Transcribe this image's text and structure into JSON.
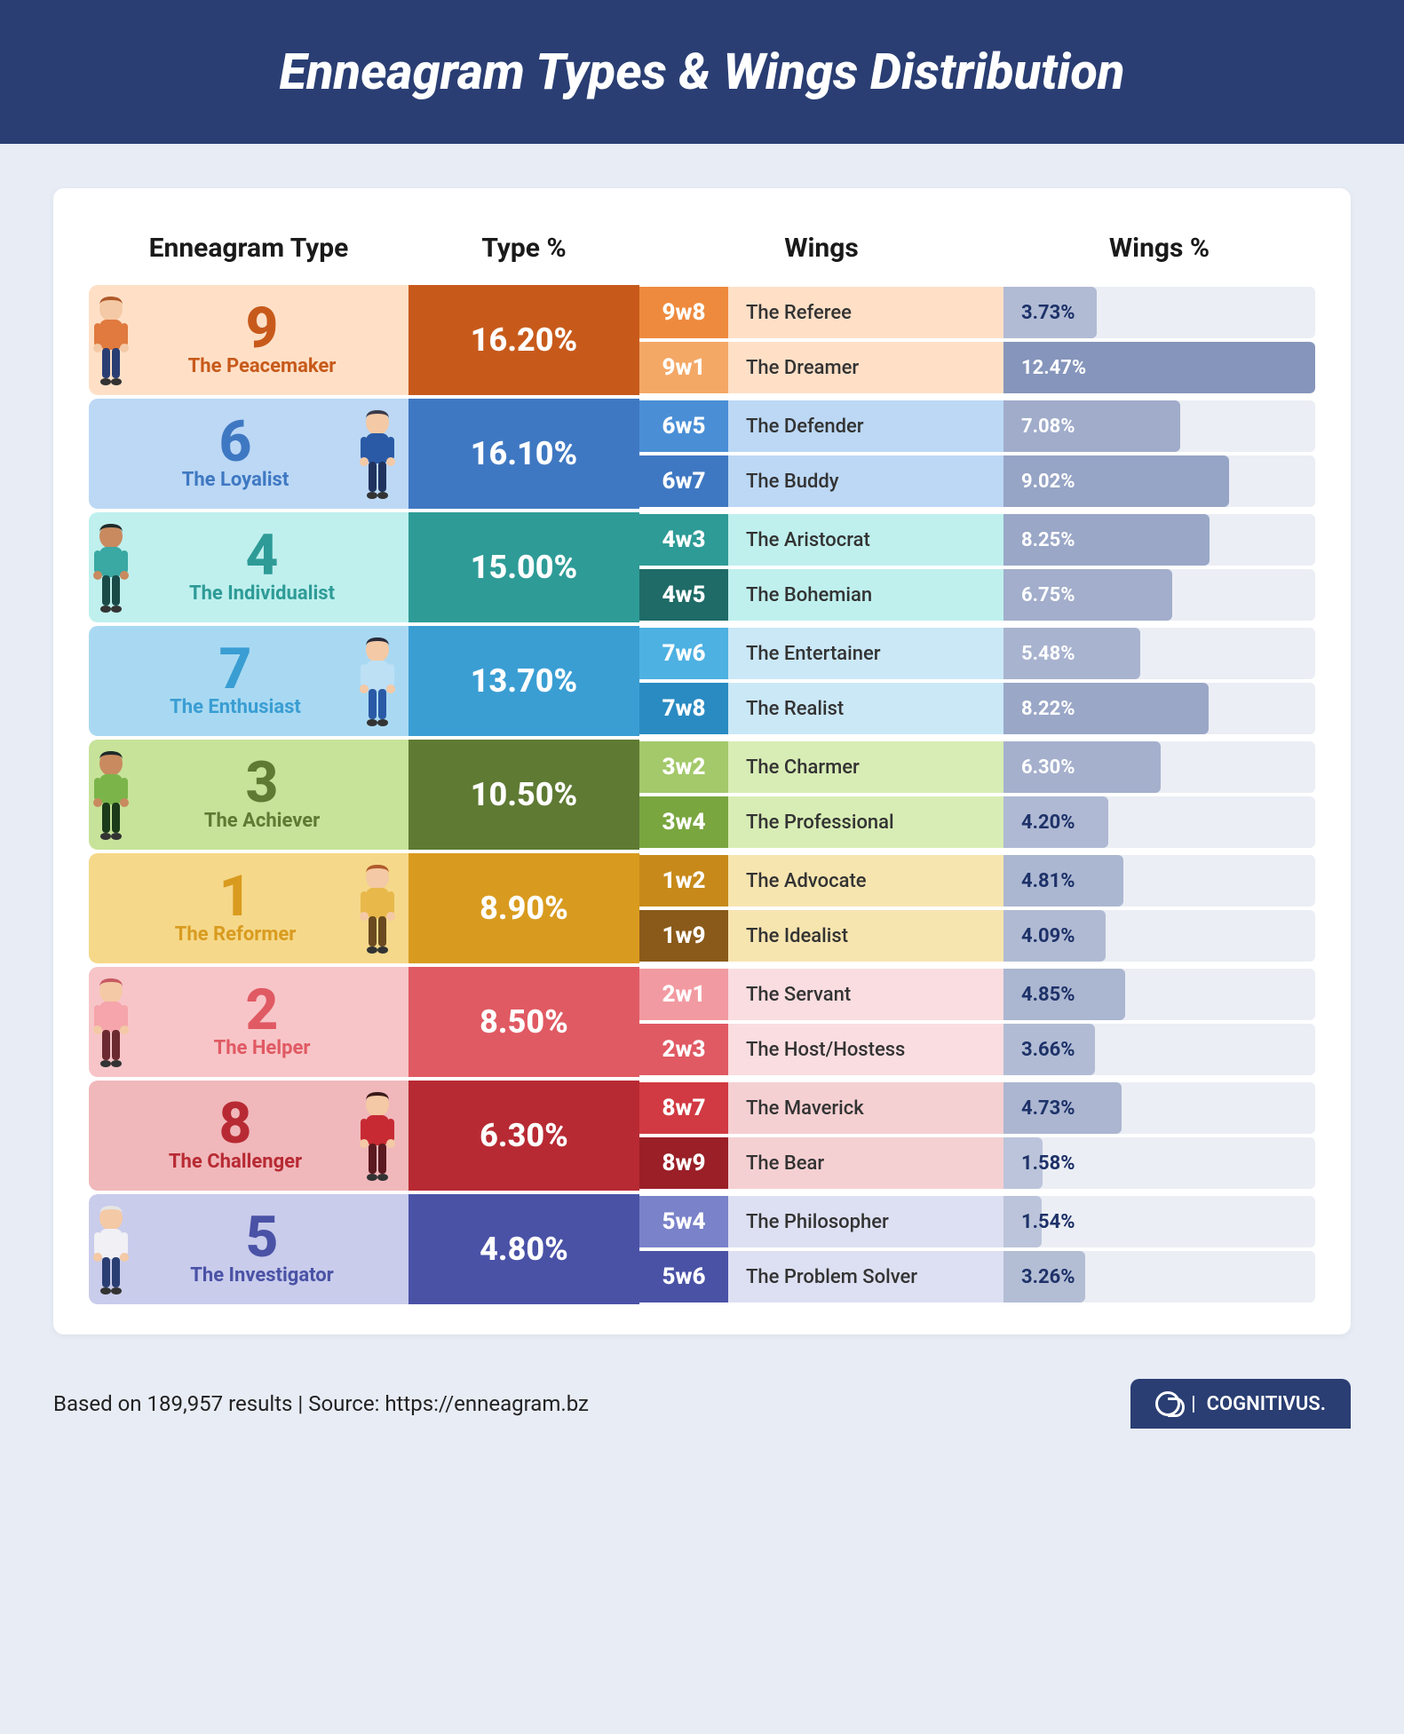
{
  "title": "Enneagram Types & Wings Distribution",
  "headers": {
    "type": "Enneagram Type",
    "type_pct": "Type %",
    "wings": "Wings",
    "wings_pct": "Wings %"
  },
  "max_wing_pct": 12.47,
  "bar_base_color": "#7a8bb5",
  "text_dark": "#1e3269",
  "text_light": "#ffffff",
  "types": [
    {
      "num": "9",
      "name": "The Peacemaker",
      "pct": "16.20%",
      "row_bg": "#ffe0c7",
      "pct_bg": "#c75a1b",
      "num_color": "#c75a1b",
      "avatar_colors": {
        "skin": "#f4c9a5",
        "hair": "#b05a2a",
        "shirt": "#e07a3f",
        "pants": "#2a3e73"
      },
      "wings": [
        {
          "code": "9w8",
          "code_bg": "#ee8a3e",
          "name": "The Referee",
          "name_bg": "#ffe0c7",
          "pct": "3.73%",
          "pct_val": 3.73,
          "lbl_color": "dark"
        },
        {
          "code": "9w1",
          "code_bg": "#f4a866",
          "name": "The Dreamer",
          "name_bg": "#ffe0c7",
          "pct": "12.47%",
          "pct_val": 12.47,
          "lbl_color": "light"
        }
      ]
    },
    {
      "num": "6",
      "name": "The Loyalist",
      "pct": "16.10%",
      "row_bg": "#bcd8f5",
      "pct_bg": "#3f78c2",
      "num_color": "#3f78c2",
      "avatar_colors": {
        "skin": "#f4c9a5",
        "hair": "#3a3a4a",
        "shirt": "#2a5aa6",
        "pants": "#20335e"
      },
      "wings": [
        {
          "code": "6w5",
          "code_bg": "#4a8fd6",
          "name": "The Defender",
          "name_bg": "#bcd8f5",
          "pct": "7.08%",
          "pct_val": 7.08,
          "lbl_color": "light"
        },
        {
          "code": "6w7",
          "code_bg": "#3f78c2",
          "name": "The Buddy",
          "name_bg": "#bcd8f5",
          "pct": "9.02%",
          "pct_val": 9.02,
          "lbl_color": "light"
        }
      ]
    },
    {
      "num": "4",
      "name": "The Individualist",
      "pct": "15.00%",
      "row_bg": "#bff0ee",
      "pct_bg": "#2e9b97",
      "num_color": "#2e9b97",
      "avatar_colors": {
        "skin": "#c98a5f",
        "hair": "#1f2a2a",
        "shirt": "#3aa8a3",
        "pants": "#1a4a48"
      },
      "wings": [
        {
          "code": "4w3",
          "code_bg": "#2e9b97",
          "name": "The Aristocrat",
          "name_bg": "#bff0ee",
          "pct": "8.25%",
          "pct_val": 8.25,
          "lbl_color": "light"
        },
        {
          "code": "4w5",
          "code_bg": "#1f6b67",
          "name": "The Bohemian",
          "name_bg": "#bff0ee",
          "pct": "6.75%",
          "pct_val": 6.75,
          "lbl_color": "light"
        }
      ]
    },
    {
      "num": "7",
      "name": "The Enthusiast",
      "pct": "13.70%",
      "row_bg": "#a9d9f2",
      "pct_bg": "#3a9ed3",
      "num_color": "#3a9ed3",
      "avatar_colors": {
        "skin": "#f4c9a5",
        "hair": "#2a2a3a",
        "shirt": "#bde0f5",
        "pants": "#2a5aa6"
      },
      "wings": [
        {
          "code": "7w6",
          "code_bg": "#4db1e2",
          "name": "The Entertainer",
          "name_bg": "#cbe8f7",
          "pct": "5.48%",
          "pct_val": 5.48,
          "lbl_color": "light"
        },
        {
          "code": "7w8",
          "code_bg": "#2a8bc2",
          "name": "The Realist",
          "name_bg": "#cbe8f7",
          "pct": "8.22%",
          "pct_val": 8.22,
          "lbl_color": "light"
        }
      ]
    },
    {
      "num": "3",
      "name": "The Achiever",
      "pct": "10.50%",
      "row_bg": "#c7e39a",
      "pct_bg": "#5e7a33",
      "num_color": "#5e7a33",
      "avatar_colors": {
        "skin": "#c98a5f",
        "hair": "#1f2a2a",
        "shirt": "#7bb54a",
        "pants": "#1a3a1a"
      },
      "wings": [
        {
          "code": "3w2",
          "code_bg": "#a3c96a",
          "name": "The Charmer",
          "name_bg": "#d8edb5",
          "pct": "6.30%",
          "pct_val": 6.3,
          "lbl_color": "light"
        },
        {
          "code": "3w4",
          "code_bg": "#7aa63f",
          "name": "The Professional",
          "name_bg": "#d8edb5",
          "pct": "4.20%",
          "pct_val": 4.2,
          "lbl_color": "dark"
        }
      ]
    },
    {
      "num": "1",
      "name": "The Reformer",
      "pct": "8.90%",
      "row_bg": "#f5d88a",
      "pct_bg": "#d99b1f",
      "num_color": "#d99b1f",
      "avatar_colors": {
        "skin": "#f4c9a5",
        "hair": "#b05a2a",
        "shirt": "#e8b84a",
        "pants": "#6a4a20"
      },
      "wings": [
        {
          "code": "1w2",
          "code_bg": "#c78a1a",
          "name": "The Advocate",
          "name_bg": "#f7e5b0",
          "pct": "4.81%",
          "pct_val": 4.81,
          "lbl_color": "dark"
        },
        {
          "code": "1w9",
          "code_bg": "#8a5a1a",
          "name": "The Idealist",
          "name_bg": "#f7e5b0",
          "pct": "4.09%",
          "pct_val": 4.09,
          "lbl_color": "dark"
        }
      ]
    },
    {
      "num": "2",
      "name": "The Helper",
      "pct": "8.50%",
      "row_bg": "#f7c5c8",
      "pct_bg": "#e05a63",
      "num_color": "#e05a63",
      "avatar_colors": {
        "skin": "#f4c9a5",
        "hair": "#c75a63",
        "shirt": "#f5a5ab",
        "pants": "#6a2a30"
      },
      "wings": [
        {
          "code": "2w1",
          "code_bg": "#f29aa1",
          "name": "The Servant",
          "name_bg": "#fadde0",
          "pct": "4.85%",
          "pct_val": 4.85,
          "lbl_color": "dark"
        },
        {
          "code": "2w3",
          "code_bg": "#e05a63",
          "name": "The Host/Hostess",
          "name_bg": "#fadde0",
          "pct": "3.66%",
          "pct_val": 3.66,
          "lbl_color": "dark"
        }
      ]
    },
    {
      "num": "8",
      "name": "The Challenger",
      "pct": "6.30%",
      "row_bg": "#f0b8bb",
      "pct_bg": "#b82a33",
      "num_color": "#b82a33",
      "avatar_colors": {
        "skin": "#f4c9a5",
        "hair": "#3a1a1a",
        "shirt": "#c72a33",
        "pants": "#5a1a1f"
      },
      "wings": [
        {
          "code": "8w7",
          "code_bg": "#d13a42",
          "name": "The Maverick",
          "name_bg": "#f5d0d2",
          "pct": "4.73%",
          "pct_val": 4.73,
          "lbl_color": "dark"
        },
        {
          "code": "8w9",
          "code_bg": "#9a1f27",
          "name": "The Bear",
          "name_bg": "#f5d0d2",
          "pct": "1.58%",
          "pct_val": 1.58,
          "lbl_color": "dark"
        }
      ]
    },
    {
      "num": "5",
      "name": "The Investigator",
      "pct": "4.80%",
      "row_bg": "#c9cceb",
      "pct_bg": "#4a52a6",
      "num_color": "#4a52a6",
      "avatar_colors": {
        "skin": "#f4c9a5",
        "hair": "#e5e5e5",
        "shirt": "#f0f0f5",
        "pants": "#2a3e73"
      },
      "wings": [
        {
          "code": "5w4",
          "code_bg": "#7a82c9",
          "name": "The Philosopher",
          "name_bg": "#dde0f2",
          "pct": "1.54%",
          "pct_val": 1.54,
          "lbl_color": "dark"
        },
        {
          "code": "5w6",
          "code_bg": "#4a52a6",
          "name": "The Problem Solver",
          "name_bg": "#dde0f2",
          "pct": "3.26%",
          "pct_val": 3.26,
          "lbl_color": "dark"
        }
      ]
    }
  ],
  "footer": {
    "note": "Based on 189,957 results | Source: https://enneagram.bz",
    "brand": "COGNITIVUS."
  }
}
